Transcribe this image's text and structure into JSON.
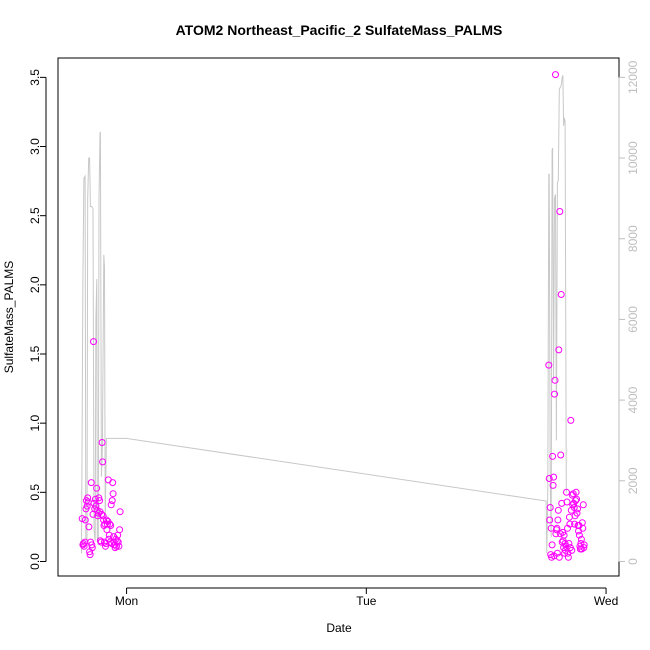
{
  "chart_data": {
    "type": "scatter",
    "title": "ATOM2 Northeast_Pacific_2 SulfateMass_PALMS",
    "xlabel": "Date",
    "ylabel": "SulfateMass_PALMS",
    "x_ticks": [
      {
        "label": "Mon",
        "value": 1.0
      },
      {
        "label": "Tue",
        "value": 2.0
      },
      {
        "label": "Wed",
        "value": 3.0
      }
    ],
    "xlim": [
      0.714,
      3.054
    ],
    "ylim": [
      -0.105,
      3.64
    ],
    "y_ticks": [
      0.0,
      0.5,
      1.0,
      1.5,
      2.0,
      2.5,
      3.0,
      3.5
    ],
    "y_tick_labels": [
      "0.0",
      "0.5",
      "1.0",
      "1.5",
      "2.0",
      "2.5",
      "3.0",
      "3.5"
    ],
    "y2_lim": [
      -360,
      12480
    ],
    "y2_ticks": [
      0,
      2000,
      4000,
      6000,
      8000,
      10000,
      12000
    ],
    "y2_tick_labels": [
      "0",
      "2000",
      "4000",
      "6000",
      "8000",
      "10000",
      "12000"
    ],
    "grid": false,
    "colors": {
      "points": "#ff00ff",
      "line": "#c8c8c8",
      "right_axis": "#bebebe"
    },
    "series": [
      {
        "kind": "points",
        "points": [
          [
            0.815,
            0.31
          ],
          [
            0.818,
            0.12
          ],
          [
            0.82,
            0.13
          ],
          [
            0.823,
            0.11
          ],
          [
            0.826,
            0.14
          ],
          [
            0.828,
            0.3
          ],
          [
            0.831,
            0.38
          ],
          [
            0.833,
            0.44
          ],
          [
            0.836,
            0.4
          ],
          [
            0.838,
            0.46
          ],
          [
            0.84,
            0.43
          ],
          [
            0.843,
            0.25
          ],
          [
            0.846,
            0.07
          ],
          [
            0.848,
            0.05
          ],
          [
            0.85,
            0.14
          ],
          [
            0.853,
            0.57
          ],
          [
            0.855,
            0.12
          ],
          [
            0.857,
            0.1
          ],
          [
            0.86,
            0.34
          ],
          [
            0.862,
            1.59
          ],
          [
            0.864,
            0.42
          ],
          [
            0.867,
            0.38
          ],
          [
            0.87,
            0.45
          ],
          [
            0.872,
            0.4
          ],
          [
            0.875,
            0.53
          ],
          [
            0.877,
            0.37
          ],
          [
            0.88,
            0.33
          ],
          [
            0.882,
            0.35
          ],
          [
            0.884,
            0.46
          ],
          [
            0.887,
            0.44
          ],
          [
            0.889,
            0.36
          ],
          [
            0.891,
            0.15
          ],
          [
            0.894,
            0.14
          ],
          [
            0.896,
            0.34
          ],
          [
            0.898,
            0.86
          ],
          [
            0.9,
            0.72
          ],
          [
            0.902,
            0.33
          ],
          [
            0.904,
            0.3
          ],
          [
            0.906,
            0.26
          ],
          [
            0.908,
            0.14
          ],
          [
            0.91,
            0.27
          ],
          [
            0.912,
            0.11
          ],
          [
            0.914,
            0.13
          ],
          [
            0.916,
            0.3
          ],
          [
            0.918,
            0.23
          ],
          [
            0.92,
            0.27
          ],
          [
            0.922,
            0.29
          ],
          [
            0.924,
            0.59
          ],
          [
            0.926,
            0.16
          ],
          [
            0.928,
            0.19
          ],
          [
            0.93,
            0.27
          ],
          [
            0.932,
            0.14
          ],
          [
            0.934,
            0.26
          ],
          [
            0.936,
            0.41
          ],
          [
            0.938,
            0.13
          ],
          [
            0.94,
            0.44
          ],
          [
            0.942,
            0.57
          ],
          [
            0.944,
            0.49
          ],
          [
            0.946,
            0.18
          ],
          [
            0.948,
            0.14
          ],
          [
            0.95,
            0.12
          ],
          [
            0.952,
            0.1
          ],
          [
            0.955,
            0.16
          ],
          [
            0.958,
            0.11
          ],
          [
            0.961,
            0.15
          ],
          [
            0.963,
            0.19
          ],
          [
            0.965,
            0.14
          ],
          [
            0.968,
            0.11
          ],
          [
            0.971,
            0.23
          ],
          [
            0.973,
            0.36
          ],
          [
            2.761,
            1.42
          ],
          [
            2.763,
            0.6
          ],
          [
            2.765,
            0.3
          ],
          [
            2.767,
            0.39
          ],
          [
            2.769,
            0.05
          ],
          [
            2.771,
            0.24
          ],
          [
            2.773,
            0.03
          ],
          [
            2.775,
            0.12
          ],
          [
            2.777,
            0.76
          ],
          [
            2.779,
            0.55
          ],
          [
            2.781,
            0.61
          ],
          [
            2.783,
            0.04
          ],
          [
            2.785,
            1.21
          ],
          [
            2.787,
            1.31
          ],
          [
            2.789,
            3.52
          ],
          [
            2.791,
            0.2
          ],
          [
            2.793,
            0.23
          ],
          [
            2.795,
            0.24
          ],
          [
            2.797,
            0.06
          ],
          [
            2.799,
            0.3
          ],
          [
            2.801,
            0.37
          ],
          [
            2.803,
            1.53
          ],
          [
            2.805,
            0.03
          ],
          [
            2.807,
            2.53
          ],
          [
            2.809,
            0.2
          ],
          [
            2.811,
            0.77
          ],
          [
            2.813,
            1.93
          ],
          [
            2.815,
            0.42
          ],
          [
            2.817,
            0.14
          ],
          [
            2.819,
            0.21
          ],
          [
            2.821,
            0.15
          ],
          [
            2.823,
            0.1
          ],
          [
            2.825,
            0.19
          ],
          [
            2.827,
            0.06
          ],
          [
            2.829,
            0.13
          ],
          [
            2.831,
            0.08
          ],
          [
            2.833,
            0.11
          ],
          [
            2.835,
            0.5
          ],
          [
            2.837,
            0.43
          ],
          [
            2.839,
            0.24
          ],
          [
            2.841,
            0.06
          ],
          [
            2.843,
            0.03
          ],
          [
            2.845,
            0.13
          ],
          [
            2.847,
            0.32
          ],
          [
            2.849,
            0.27
          ],
          [
            2.851,
            0.1
          ],
          [
            2.853,
            1.02
          ],
          [
            2.855,
            0.37
          ],
          [
            2.857,
            0.08
          ],
          [
            2.859,
            0.48
          ],
          [
            2.861,
            0.41
          ],
          [
            2.863,
            0.49
          ],
          [
            2.865,
            0.42
          ],
          [
            2.867,
            0.39
          ],
          [
            2.869,
            0.27
          ],
          [
            2.871,
            0.33
          ],
          [
            2.873,
            0.44
          ],
          [
            2.875,
            0.5
          ],
          [
            2.877,
            0.45
          ],
          [
            2.879,
            0.35
          ],
          [
            2.881,
            0.38
          ],
          [
            2.883,
            0.26
          ],
          [
            2.885,
            0.22
          ],
          [
            2.887,
            0.26
          ],
          [
            2.889,
            0.19
          ],
          [
            2.891,
            0.11
          ],
          [
            2.893,
            0.09
          ],
          [
            2.895,
            0.13
          ],
          [
            2.897,
            0.16
          ],
          [
            2.899,
            0.09
          ],
          [
            2.901,
            0.28
          ],
          [
            2.903,
            0.24
          ],
          [
            2.905,
            0.41
          ],
          [
            2.907,
            0.1
          ],
          [
            2.909,
            0.12
          ]
        ]
      },
      {
        "kind": "line",
        "axis": "right",
        "points": [
          [
            0.812,
            200
          ],
          [
            0.818,
            7000
          ],
          [
            0.822,
            9500
          ],
          [
            0.827,
            9550
          ],
          [
            0.83,
            600
          ],
          [
            0.835,
            500
          ],
          [
            0.838,
            9000
          ],
          [
            0.842,
            10000
          ],
          [
            0.846,
            10000
          ],
          [
            0.849,
            8800
          ],
          [
            0.854,
            8800
          ],
          [
            0.86,
            8750
          ],
          [
            0.864,
            800
          ],
          [
            0.869,
            500
          ],
          [
            0.872,
            6000
          ],
          [
            0.876,
            7000
          ],
          [
            0.878,
            500
          ],
          [
            0.882,
            400
          ],
          [
            0.885,
            9000
          ],
          [
            0.889,
            10600
          ],
          [
            0.891,
            10650
          ],
          [
            0.895,
            2100
          ],
          [
            0.899,
            2800
          ],
          [
            0.905,
            7600
          ],
          [
            0.908,
            7300
          ],
          [
            0.911,
            1000
          ],
          [
            0.916,
            3050
          ],
          [
            1.0,
            3050
          ],
          [
            2.75,
            1500
          ],
          [
            2.753,
            200
          ],
          [
            2.757,
            1800
          ],
          [
            2.761,
            9600
          ],
          [
            2.763,
            9600
          ],
          [
            2.767,
            2000
          ],
          [
            2.771,
            600
          ],
          [
            2.775,
            10200
          ],
          [
            2.777,
            10250
          ],
          [
            2.781,
            4500
          ],
          [
            2.785,
            9000
          ],
          [
            2.789,
            9100
          ],
          [
            2.793,
            3000
          ],
          [
            2.797,
            9400
          ],
          [
            2.801,
            9450
          ],
          [
            2.805,
            11700
          ],
          [
            2.813,
            11800
          ],
          [
            2.817,
            12000
          ],
          [
            2.82,
            12050
          ],
          [
            2.823,
            10800
          ],
          [
            2.826,
            11000
          ],
          [
            2.829,
            10900
          ],
          [
            2.834,
            1700
          ]
        ]
      }
    ]
  }
}
